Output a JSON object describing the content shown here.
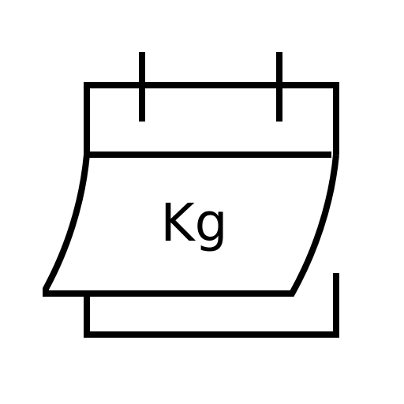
{
  "icon": {
    "name": "calendar-weight-icon",
    "label": "Kg",
    "stroke_color": "#000000",
    "background_color": "#ffffff"
  }
}
